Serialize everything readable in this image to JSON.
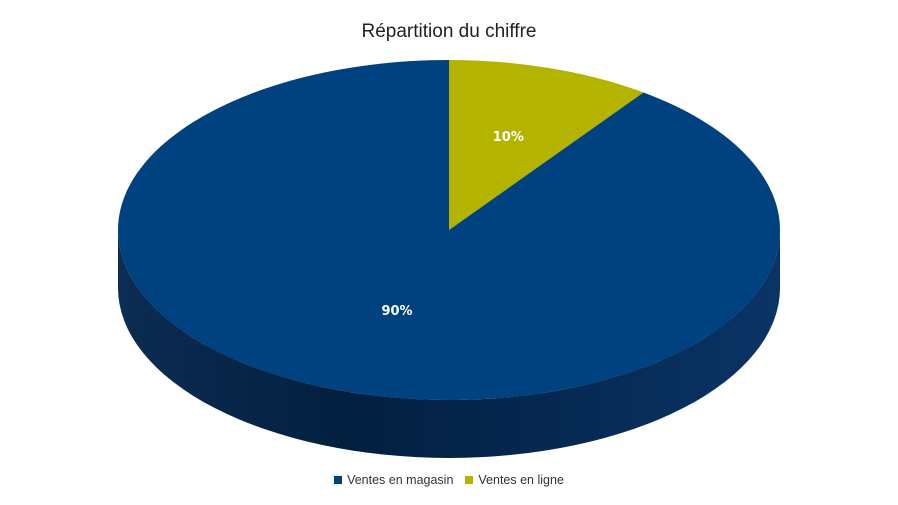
{
  "chart_data": {
    "type": "pie",
    "title": "Répartition du chiffre",
    "slices": [
      {
        "name": "Ventes en magasin",
        "value": 90,
        "label": "90%",
        "color": "#00427f"
      },
      {
        "name": "Ventes en ligne",
        "value": 10,
        "label": "10%",
        "color": "#b4b400"
      }
    ],
    "legend_position": "bottom",
    "style": "3d"
  }
}
